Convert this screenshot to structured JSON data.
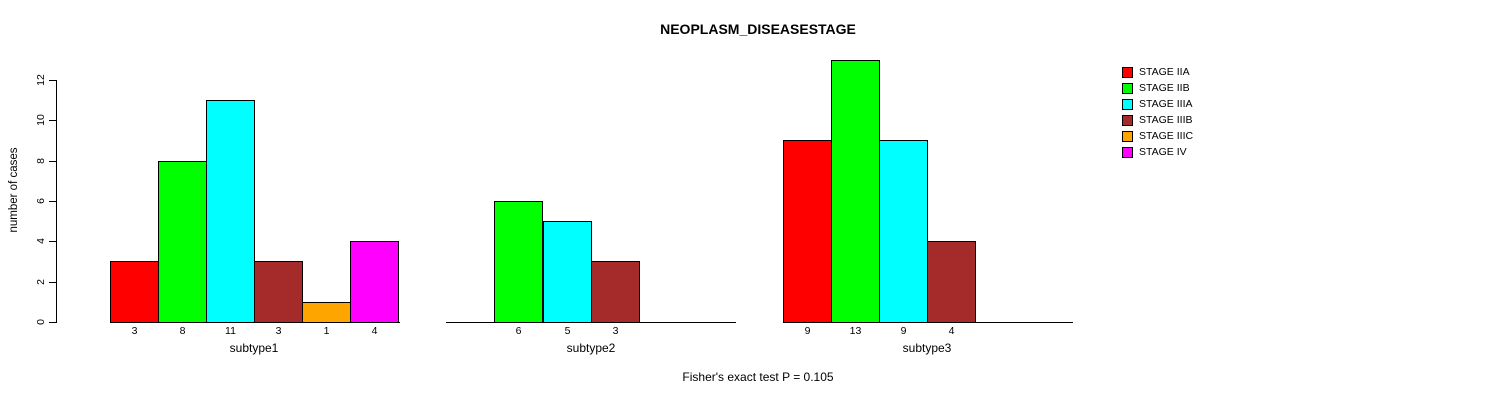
{
  "chart_data": {
    "type": "bar",
    "title": "NEOPLASM_DISEASESTAGE",
    "ylabel": "number of cases",
    "caption": "Fisher's exact test P = 0.105",
    "ylim": [
      0,
      12
    ],
    "yticks": [
      0,
      2,
      4,
      6,
      8,
      10,
      12
    ],
    "grid": false,
    "legend_position": "right",
    "bar_value_labels_shown": true,
    "categories": [
      "subtype1",
      "subtype2",
      "subtype3"
    ],
    "series": [
      {
        "name": "STAGE IIA",
        "color": "#FF0000",
        "values": [
          3,
          0,
          9
        ]
      },
      {
        "name": "STAGE IIB",
        "color": "#00FF00",
        "values": [
          8,
          6,
          13
        ]
      },
      {
        "name": "STAGE IIIA",
        "color": "#00FFFF",
        "values": [
          11,
          5,
          9
        ]
      },
      {
        "name": "STAGE IIIB",
        "color": "#A52A2A",
        "values": [
          3,
          3,
          4
        ]
      },
      {
        "name": "STAGE IIIC",
        "color": "#FFA500",
        "values": [
          1,
          0,
          0
        ]
      },
      {
        "name": "STAGE IV",
        "color": "#FF00FF",
        "values": [
          4,
          0,
          0
        ]
      }
    ]
  }
}
